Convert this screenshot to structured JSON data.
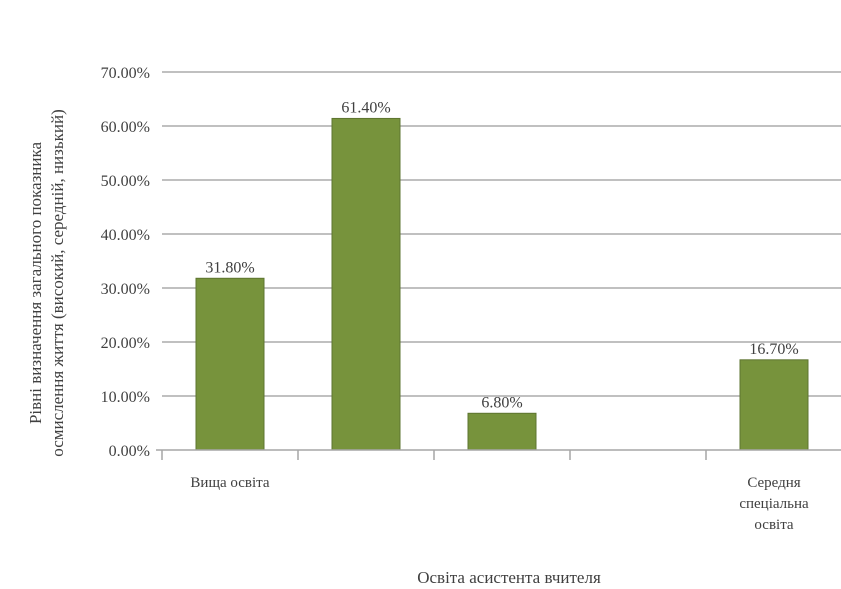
{
  "chart_data": {
    "type": "bar",
    "categories": [
      "Вища освіта",
      "",
      "",
      "",
      "Середня спеціальна освіта"
    ],
    "category_label_lines": [
      [
        "Вища освіта"
      ],
      [],
      [],
      [],
      [
        "Середня",
        "спеціальна",
        "освіта"
      ]
    ],
    "values": [
      31.8,
      61.4,
      6.8,
      null,
      16.7
    ],
    "data_labels": [
      "31.80%",
      "61.40%",
      "6.80%",
      "",
      "16.70%"
    ],
    "ylim": [
      0,
      70
    ],
    "yticks": [
      0,
      10,
      20,
      30,
      40,
      50,
      60,
      70
    ],
    "ytick_labels": [
      "0.00%",
      "10.00%",
      "20.00%",
      "30.00%",
      "40.00%",
      "50.00%",
      "60.00%",
      "70.00%"
    ],
    "xlabel": "Освіта асистента вчителя",
    "ylabel_lines": [
      "Рівні визначення загального показника",
      "осмислення життя (високий, середній, низький)"
    ],
    "grid": true,
    "bar_color": "#77933c",
    "bar_edge_color": "#5e7530",
    "grid_color": "#c0c0c0",
    "text_color": "#404040"
  }
}
